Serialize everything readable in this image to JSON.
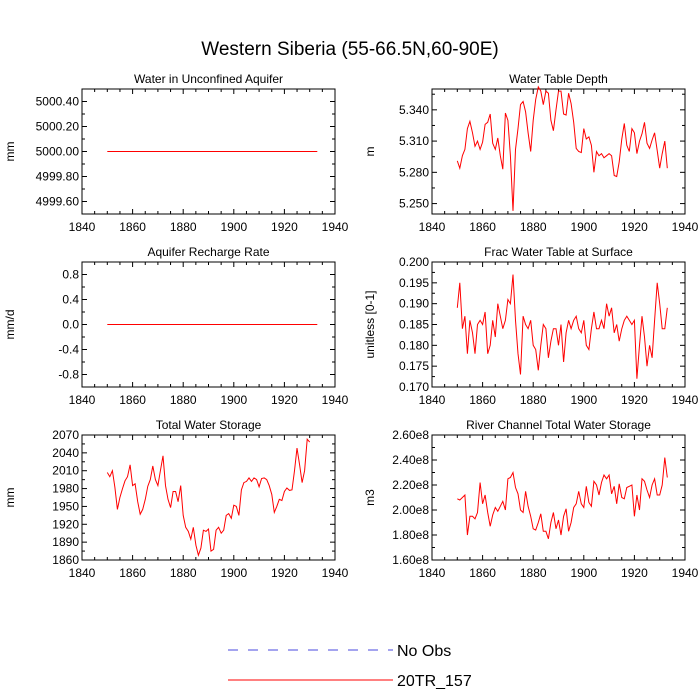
{
  "title": "Western Siberia (55-66.5N,60-90E)",
  "colors": {
    "model": "#ff0000",
    "obs": "#0000ff",
    "axis": "#000000"
  },
  "legend": {
    "obs_label": "No Obs",
    "model_label": "20TR_157"
  },
  "chart_data": [
    {
      "type": "line",
      "title": "Water in Unconfined Aquifer",
      "ylabel": "mm",
      "xlim": [
        1840,
        1940
      ],
      "ylim": [
        4999.5,
        5000.5
      ],
      "xticks": [
        1840,
        1860,
        1880,
        1900,
        1920,
        1940
      ],
      "xtick_labels": [
        "1840",
        "1860",
        "1880",
        "1900",
        "1920",
        "1940"
      ],
      "yticks": [
        4999.6,
        4999.8,
        5000.0,
        5000.2,
        5000.4
      ],
      "ytick_labels": [
        "4999.60",
        "4999.80",
        "5000.00",
        "5000.20",
        "5000.40"
      ],
      "series": [
        {
          "name": "20TR_157",
          "x": [
            1850,
            1933
          ],
          "values": [
            5000.0,
            5000.0
          ]
        }
      ]
    },
    {
      "type": "line",
      "title": "Water Table Depth",
      "ylabel": "m",
      "xlim": [
        1840,
        1940
      ],
      "ylim": [
        5.24,
        5.36
      ],
      "xticks": [
        1840,
        1860,
        1880,
        1900,
        1920,
        1940
      ],
      "xtick_labels": [
        "1840",
        "1860",
        "1880",
        "1900",
        "1920",
        "1940"
      ],
      "yticks": [
        5.25,
        5.28,
        5.31,
        5.34
      ],
      "ytick_labels": [
        "5.250",
        "5.280",
        "5.310",
        "5.340"
      ],
      "series": [
        {
          "name": "20TR_157",
          "x0": 1850,
          "dx": 1,
          "values": [
            5.291,
            5.284,
            5.296,
            5.302,
            5.322,
            5.329,
            5.318,
            5.305,
            5.31,
            5.302,
            5.309,
            5.326,
            5.328,
            5.336,
            5.308,
            5.302,
            5.313,
            5.296,
            5.283,
            5.337,
            5.33,
            5.296,
            5.243,
            5.302,
            5.322,
            5.345,
            5.348,
            5.338,
            5.318,
            5.3,
            5.33,
            5.35,
            5.362,
            5.358,
            5.345,
            5.358,
            5.356,
            5.33,
            5.32,
            5.34,
            5.358,
            5.358,
            5.336,
            5.335,
            5.356,
            5.346,
            5.328,
            5.303,
            5.3,
            5.299,
            5.322,
            5.312,
            5.314,
            5.306,
            5.28,
            5.3,
            5.296,
            5.298,
            5.294,
            5.296,
            5.298,
            5.296,
            5.277,
            5.276,
            5.29,
            5.312,
            5.327,
            5.306,
            5.3,
            5.322,
            5.318,
            5.298,
            5.31,
            5.317,
            5.328,
            5.308,
            5.303,
            5.311,
            5.318,
            5.301,
            5.284,
            5.298,
            5.31,
            5.284
          ]
        }
      ]
    },
    {
      "type": "line",
      "title": "Aquifer Recharge Rate",
      "ylabel": "mm/d",
      "xlim": [
        1840,
        1940
      ],
      "ylim": [
        -1.0,
        1.0
      ],
      "xticks": [
        1840,
        1860,
        1880,
        1900,
        1920,
        1940
      ],
      "xtick_labels": [
        "1840",
        "1860",
        "1880",
        "1900",
        "1920",
        "1940"
      ],
      "yticks": [
        -0.8,
        -0.4,
        0.0,
        0.4,
        0.8
      ],
      "ytick_labels": [
        "-0.8",
        "-0.4",
        "0.0",
        "0.4",
        "0.8"
      ],
      "series": [
        {
          "name": "20TR_157",
          "x": [
            1850,
            1933
          ],
          "values": [
            0.0,
            0.0
          ]
        }
      ]
    },
    {
      "type": "line",
      "title": "Frac Water Table at Surface",
      "ylabel": "unitless [0-1]",
      "xlim": [
        1840,
        1940
      ],
      "ylim": [
        0.17,
        0.2
      ],
      "xticks": [
        1840,
        1860,
        1880,
        1900,
        1920,
        1940
      ],
      "xtick_labels": [
        "1840",
        "1860",
        "1880",
        "1900",
        "1920",
        "1940"
      ],
      "yticks": [
        0.17,
        0.175,
        0.18,
        0.185,
        0.19,
        0.195,
        0.2
      ],
      "ytick_labels": [
        "0.170",
        "0.175",
        "0.180",
        "0.185",
        "0.190",
        "0.195",
        "0.200"
      ],
      "series": [
        {
          "name": "20TR_157",
          "x0": 1850,
          "dx": 1,
          "values": [
            0.189,
            0.195,
            0.184,
            0.187,
            0.178,
            0.186,
            0.183,
            0.178,
            0.185,
            0.186,
            0.185,
            0.188,
            0.178,
            0.18,
            0.186,
            0.182,
            0.19,
            0.187,
            0.184,
            0.186,
            0.191,
            0.19,
            0.197,
            0.186,
            0.178,
            0.173,
            0.187,
            0.185,
            0.184,
            0.186,
            0.18,
            0.179,
            0.174,
            0.18,
            0.185,
            0.184,
            0.177,
            0.181,
            0.184,
            0.184,
            0.18,
            0.185,
            0.176,
            0.183,
            0.186,
            0.184,
            0.186,
            0.187,
            0.184,
            0.183,
            0.186,
            0.18,
            0.179,
            0.184,
            0.188,
            0.184,
            0.184,
            0.186,
            0.184,
            0.19,
            0.187,
            0.189,
            0.183,
            0.185,
            0.181,
            0.184,
            0.186,
            0.187,
            0.186,
            0.185,
            0.186,
            0.172,
            0.18,
            0.187,
            0.182,
            0.175,
            0.18,
            0.177,
            0.186,
            0.195,
            0.19,
            0.184,
            0.184,
            0.189
          ]
        }
      ]
    },
    {
      "type": "line",
      "title": "Total Water Storage",
      "ylabel": "mm",
      "xlim": [
        1840,
        1940
      ],
      "ylim": [
        1860,
        2070
      ],
      "xticks": [
        1840,
        1860,
        1880,
        1900,
        1920,
        1940
      ],
      "xtick_labels": [
        "1840",
        "1860",
        "1880",
        "1900",
        "1920",
        "1940"
      ],
      "yticks": [
        1860,
        1890,
        1920,
        1950,
        1980,
        2010,
        2040,
        2070
      ],
      "ytick_labels": [
        "1860",
        "1890",
        "1920",
        "1950",
        "1980",
        "2010",
        "2040",
        "2070"
      ],
      "series": [
        {
          "name": "20TR_157",
          "x0": 1850,
          "dx": 1,
          "values": [
            2007,
            2000,
            2010,
            1982,
            1945,
            1965,
            1980,
            1993,
            2000,
            2020,
            1985,
            1988,
            1958,
            1937,
            1945,
            1962,
            1984,
            1995,
            2018,
            1995,
            1985,
            2010,
            2035,
            1985,
            1962,
            1948,
            1975,
            1975,
            1958,
            1985,
            1935,
            1915,
            1908,
            1895,
            1915,
            1885,
            1868,
            1880,
            1910,
            1908,
            1912,
            1875,
            1878,
            1910,
            1915,
            1905,
            1910,
            1935,
            1938,
            1930,
            1952,
            1950,
            1935,
            1978,
            1990,
            1992,
            1998,
            1992,
            1998,
            1995,
            1983,
            1997,
            1998,
            1995,
            1985,
            1970,
            1940,
            1950,
            1962,
            1960,
            1975,
            1981,
            1977,
            1978,
            2010,
            2048,
            2020,
            1990,
            2010,
            2063,
            2058
          ]
        }
      ]
    },
    {
      "type": "line",
      "title": "River Channel Total Water Storage",
      "ylabel": "m3",
      "xlim": [
        1840,
        1940
      ],
      "ylim": [
        160000000,
        260000000
      ],
      "xticks": [
        1840,
        1860,
        1880,
        1900,
        1920,
        1940
      ],
      "xtick_labels": [
        "1840",
        "1860",
        "1880",
        "1900",
        "1920",
        "1940"
      ],
      "yticks": [
        160000000,
        180000000,
        200000000,
        220000000,
        240000000,
        260000000
      ],
      "ytick_labels": [
        "1.60e8",
        "1.80e8",
        "2.00e8",
        "2.20e8",
        "2.40e8",
        "2.60e8"
      ],
      "series": [
        {
          "name": "20TR_157",
          "x0": 1850,
          "dx": 1,
          "values": [
            209000000,
            208000000,
            210000000,
            212000000,
            180000000,
            195000000,
            195000000,
            193000000,
            198000000,
            222000000,
            205000000,
            212000000,
            198000000,
            187000000,
            196000000,
            202000000,
            199000000,
            203000000,
            207000000,
            200000000,
            225000000,
            226000000,
            230000000,
            218000000,
            213000000,
            200000000,
            198000000,
            215000000,
            203000000,
            195000000,
            185000000,
            184000000,
            190000000,
            197000000,
            183000000,
            183000000,
            177000000,
            190000000,
            198000000,
            185000000,
            192000000,
            180000000,
            195000000,
            201000000,
            183000000,
            190000000,
            202000000,
            205000000,
            215000000,
            205000000,
            202000000,
            219000000,
            206000000,
            203000000,
            223000000,
            220000000,
            212000000,
            222000000,
            228000000,
            225000000,
            228000000,
            213000000,
            219000000,
            205000000,
            221000000,
            210000000,
            209000000,
            218000000,
            219000000,
            220000000,
            195000000,
            212000000,
            200000000,
            225000000,
            223000000,
            216000000,
            210000000,
            220000000,
            225000000,
            212000000,
            212000000,
            220000000,
            242000000,
            226000000
          ]
        }
      ]
    }
  ]
}
